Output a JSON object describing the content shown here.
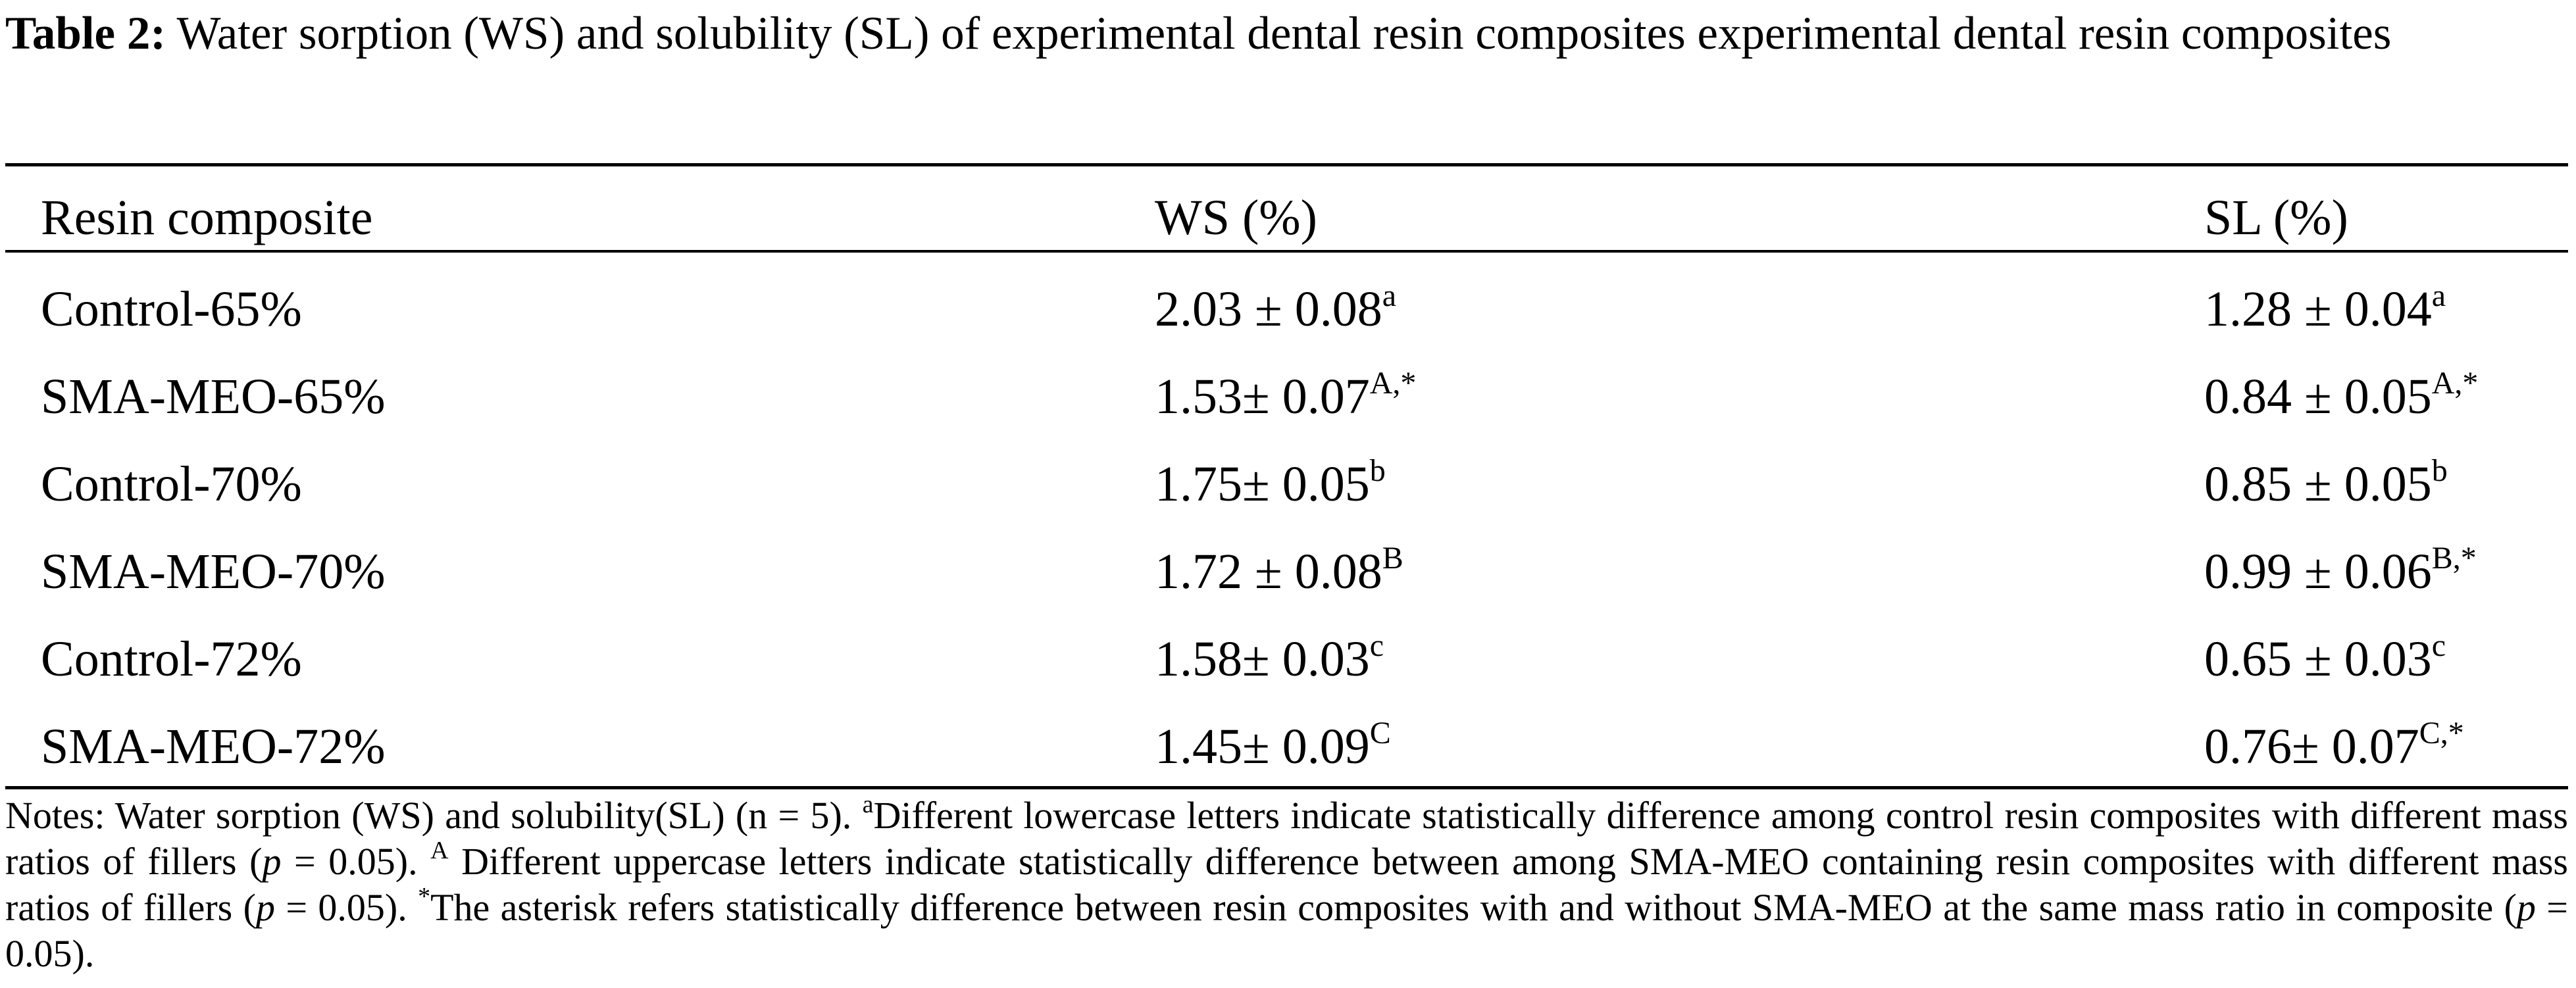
{
  "table": {
    "label": "Table 2:",
    "caption": "Water sorption (WS) and solubility (SL) of experimental dental resin composites experimental dental resin composites",
    "headers": [
      "Resin composite",
      "WS (%)",
      "SL (%)"
    ],
    "rows": [
      {
        "name": "Control-65%",
        "ws": "2.03 ± 0.08",
        "ws_sup": "a",
        "sl": "1.28 ± 0.04",
        "sl_sup": "a"
      },
      {
        "name": "SMA-MEO-65%",
        "ws": "1.53± 0.07",
        "ws_sup": "A,*",
        "sl": "0.84 ± 0.05",
        "sl_sup": "A,*"
      },
      {
        "name": "Control-70%",
        "ws": "1.75± 0.05",
        "ws_sup": "b",
        "sl": "0.85 ± 0.05",
        "sl_sup": "b"
      },
      {
        "name": "SMA-MEO-70%",
        "ws": "1.72 ± 0.08",
        "ws_sup": "B",
        "sl": "0.99 ± 0.06",
        "sl_sup": "B,*"
      },
      {
        "name": "Control-72%",
        "ws": "1.58± 0.03",
        "ws_sup": "c",
        "sl": "0.65 ± 0.03",
        "sl_sup": "c"
      },
      {
        "name": "SMA-MEO-72%",
        "ws": "1.45± 0.09",
        "ws_sup": "C",
        "sl": "0.76± 0.07",
        "sl_sup": "C,*"
      }
    ]
  },
  "notes": {
    "n1": "Notes: Water sorption (WS) and solubility(SL) (n = 5). ",
    "sup_a": "a",
    "n2": "Different lowercase letters indicate statistically difference among control resin composites with different mass ratios of fillers (",
    "p1": "p",
    "n3": " = 0.05). ",
    "sup_A": "A",
    "n4": " Different uppercase letters indicate statistically difference between among SMA-MEO containing resin composites with different mass ratios of fillers (",
    "p2": "p",
    "n5": " = 0.05). ",
    "sup_star": "*",
    "n6": "The asterisk refers statistically difference between resin composites with and without SMA-MEO at the same mass ratio in composite (",
    "p3": "p",
    "n7": " = 0.05)."
  }
}
